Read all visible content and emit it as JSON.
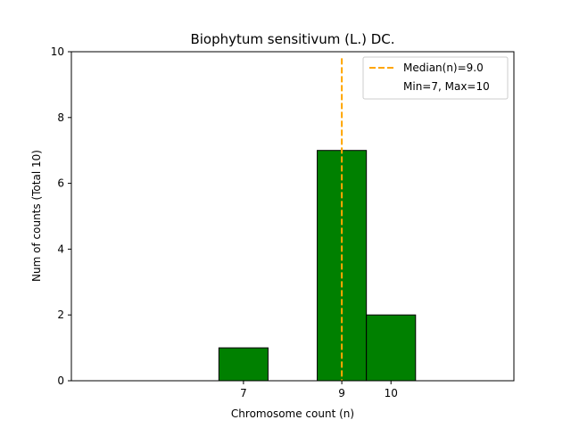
{
  "chart_data": {
    "type": "bar",
    "title": "Biophytum sensitivum (L.) DC.",
    "xlabel": "Chromosome count (n)",
    "ylabel": "Num of counts      (Total 10)",
    "x_ticks": [
      7,
      9,
      10
    ],
    "y_ticks": [
      0,
      2,
      4,
      6,
      8,
      10
    ],
    "xlim": [
      3.5,
      12.5
    ],
    "ylim": [
      0,
      10
    ],
    "bars": [
      {
        "x": 7,
        "value": 1
      },
      {
        "x": 9,
        "value": 7
      },
      {
        "x": 10,
        "value": 2
      }
    ],
    "bar_width": 1,
    "median": 9.0,
    "baseline_end": 10.5,
    "legend": {
      "placement": "top-right",
      "entries": [
        "Median(n)=9.0",
        "Min=7, Max=10"
      ]
    },
    "colors": {
      "bar_fill": "#008000",
      "bar_edge": "#000000",
      "median_line": "#ffa500"
    },
    "grid": false
  }
}
